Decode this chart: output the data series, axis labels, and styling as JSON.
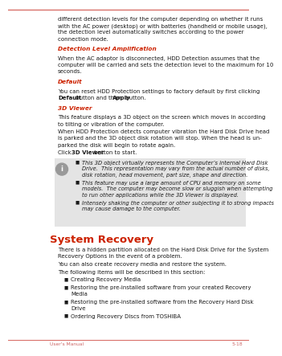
{
  "bg_color": "#ffffff",
  "top_line_color": "#d9706a",
  "bottom_line_color": "#d9706a",
  "footer_text_color": "#cc6666",
  "footer_left": "User's Manual",
  "footer_right": "5-18",
  "body_text_color": "#1a1a1a",
  "red_heading_color": "#cc2200",
  "section_heading_color": "#cc2200",
  "intro_lines": [
    "different detection levels for the computer depending on whether it runs",
    "with the AC power (desktop) or with batteries (handheld or mobile usage),",
    "the detection level automatically switches according to the power",
    "connection mode."
  ],
  "heading1": "Detection Level Amplification",
  "para1_lines": [
    "When the AC adaptor is disconnected, HDD Detection assumes that the",
    "computer will be carried and sets the detection level to the maximum for 10",
    "seconds."
  ],
  "heading2": "Default",
  "para2_line1": "You can reset HDD Protection settings to factory default by first clicking",
  "para2_line2_pre": "",
  "para2_line2_b1": "Default",
  "para2_line2_mid": " button and then ",
  "para2_line2_b2": "Apply",
  "para2_line2_post": " button.",
  "heading3": "3D Viewer",
  "para3_lines": [
    "This feature displays a 3D object on the screen which moves in according",
    "to tilting or vibration of the computer."
  ],
  "para4_lines": [
    "When HDD Protection detects computer vibration the Hard Disk Drive head",
    "is parked and the 3D object disk rotation will stop. When the head is un-",
    "parked the disk will begin to rotate again."
  ],
  "para5_pre": "Click ",
  "para5_bold": "3D Viewer",
  "para5_post": " button to start.",
  "note_box_color": "#e4e4e4",
  "note_bullets": [
    [
      "This 3D object virtually represents the Computer’s internal Hard Disk",
      "Drive.  This representation may vary from the actual number of disks,",
      "disk rotation, head movement, part size, shape and direction."
    ],
    [
      "This feature may use a large amount of CPU and memory on some",
      "models.  The computer may become slow or sluggish when attempting",
      "to run other applications while the 3D Viewer is displayed."
    ],
    [
      "Intensely shaking the computer or other subjecting it to strong impacts",
      "may cause damage to the computer."
    ]
  ],
  "system_recovery_heading": "System Recovery",
  "sr_para1_lines": [
    "There is a hidden partition allocated on the Hard Disk Drive for the System",
    "Recovery Options in the event of a problem."
  ],
  "sr_para2": "You can also create recovery media and restore the system.",
  "sr_para3": "The following items will be described in this section:",
  "sr_bullets": [
    [
      "Creating Recovery Media"
    ],
    [
      "Restoring the pre-installed software from your created Recovery",
      "Media"
    ],
    [
      "Restoring the pre-installed software from the Recovery Hard Disk",
      "Drive"
    ],
    [
      "Ordering Recovery Discs from TOSHIBA"
    ]
  ]
}
